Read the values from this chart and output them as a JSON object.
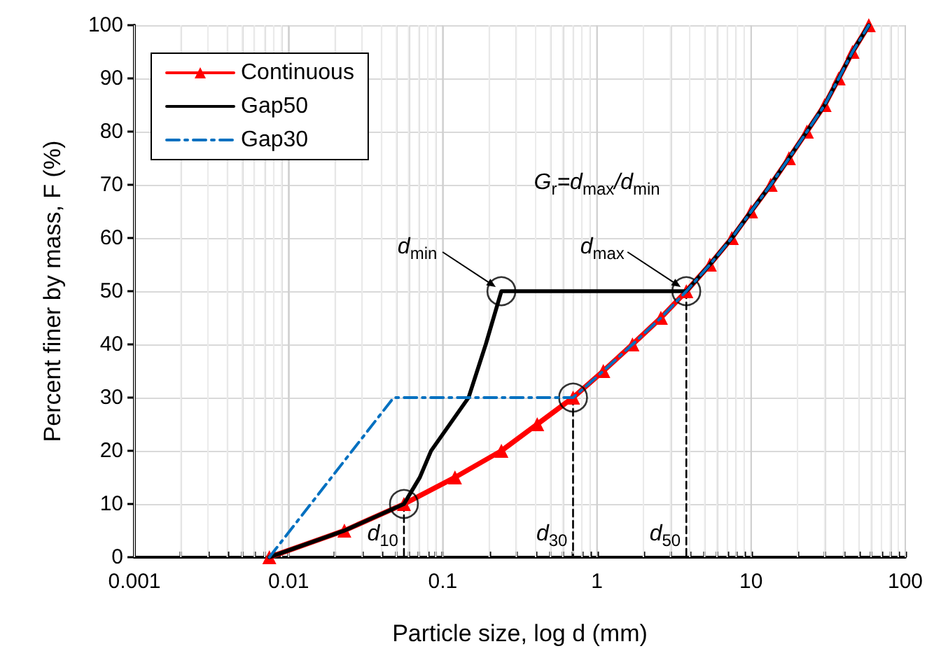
{
  "chart_data": {
    "type": "line",
    "xlabel": "Particle size, log d (mm)",
    "ylabel": "Percent finer by mass, F (%)",
    "log": "x",
    "xlim": [
      0.001,
      100
    ],
    "xticks": [
      0.001,
      {
        "value": 0.002,
        "label": null
      },
      {
        "value": 0.003,
        "label": null
      },
      {
        "value": 0.004,
        "label": null
      },
      {
        "value": 0.005,
        "label": null
      },
      {
        "value": 0.006,
        "label": null
      },
      {
        "value": 0.007,
        "label": null
      },
      {
        "value": 0.008,
        "label": null
      },
      {
        "value": 0.009,
        "label": null
      },
      0.01,
      {
        "value": 0.02,
        "label": null
      },
      {
        "value": 0.03,
        "label": null
      },
      {
        "value": 0.04,
        "label": null
      },
      {
        "value": 0.05,
        "label": null
      },
      {
        "value": 0.06,
        "label": null
      },
      {
        "value": 0.07,
        "label": null
      },
      {
        "value": 0.08,
        "label": null
      },
      {
        "value": 0.09,
        "label": null
      },
      0.1,
      {
        "value": 0.2,
        "label": null
      },
      {
        "value": 0.3,
        "label": null
      },
      {
        "value": 0.4,
        "label": null
      },
      {
        "value": 0.5,
        "label": null
      },
      {
        "value": 0.6,
        "label": null
      },
      {
        "value": 0.7,
        "label": null
      },
      {
        "value": 0.8,
        "label": null
      },
      {
        "value": 0.9,
        "label": null
      },
      1,
      {
        "value": 2,
        "label": null
      },
      {
        "value": 3,
        "label": null
      },
      {
        "value": 4,
        "label": null
      },
      {
        "value": 5,
        "label": null
      },
      {
        "value": 6,
        "label": null
      },
      {
        "value": 7,
        "label": null
      },
      {
        "value": 8,
        "label": null
      },
      {
        "value": 9,
        "label": null
      },
      10,
      {
        "value": 20,
        "label": null
      },
      {
        "value": 30,
        "label": null
      },
      {
        "value": 40,
        "label": null
      },
      {
        "value": 50,
        "label": null
      },
      {
        "value": 60,
        "label": null
      },
      {
        "value": 70,
        "label": null
      },
      {
        "value": 80,
        "label": null
      },
      {
        "value": 90,
        "label": null
      },
      100
    ],
    "ylim": [
      0,
      100
    ],
    "yticks": [
      0,
      10,
      20,
      30,
      40,
      50,
      60,
      70,
      80,
      90,
      100
    ],
    "grid": true,
    "legend": "top left",
    "series": [
      {
        "name": "Continuous",
        "color": "#ff0000",
        "marker": "triangle",
        "line_style": "solid",
        "x": [
          0.0075,
          0.023,
          0.056,
          0.12,
          0.24,
          0.41,
          0.7,
          1.1,
          1.7,
          2.6,
          3.8,
          5.4,
          7.5,
          10,
          13.4,
          17.6,
          23,
          30,
          37,
          45.5,
          58
        ],
        "values": [
          0,
          5,
          10,
          15,
          20,
          25,
          30,
          35,
          40,
          45,
          50,
          55,
          60,
          65,
          70,
          75,
          80,
          85,
          90,
          95,
          100
        ]
      },
      {
        "name": "Gap50",
        "color": "#000000",
        "marker": "none",
        "line_style": "solid",
        "x": [
          0.0075,
          0.023,
          0.056,
          0.071,
          0.084,
          0.147,
          0.19,
          0.24,
          3.8,
          5.4,
          7.5,
          10,
          13.4,
          17.6,
          23,
          30,
          37,
          45.5,
          58
        ],
        "values": [
          0,
          5,
          10,
          15,
          20,
          30,
          40,
          50,
          50,
          55,
          60,
          65,
          70,
          75,
          80,
          85,
          90,
          95,
          100
        ]
      },
      {
        "name": "Gap30",
        "color": "#0070c0",
        "marker": "none",
        "line_style": "dashed",
        "x": [
          0.0075,
          0.048,
          0.7,
          1.1,
          1.7,
          2.6,
          3.8,
          5.4,
          7.5,
          10,
          13.4,
          17.6,
          23,
          30,
          37,
          45.5,
          58
        ],
        "values": [
          0,
          30,
          30,
          35,
          40,
          45,
          50,
          55,
          60,
          65,
          70,
          75,
          80,
          85,
          90,
          95,
          100
        ]
      },
      {
        "type": "line",
        "color": "#000000",
        "marker": "none",
        "line_style": "dashed",
        "x": [
          0.056,
          0.056
        ],
        "values": [
          10,
          0
        ]
      },
      {
        "type": "line",
        "color": "#000000",
        "marker": "none",
        "line_style": "dashed",
        "x": [
          0.7,
          0.7
        ],
        "values": [
          30,
          0
        ]
      },
      {
        "type": "line",
        "color": "#000000",
        "marker": "none",
        "line_style": "dashed",
        "x": [
          3.8,
          3.8
        ],
        "values": [
          50,
          0
        ]
      },
      {
        "type": "scatter",
        "color": "#000000",
        "marker": "circle",
        "x": [
          0.056,
          0.7,
          0.24,
          3.8
        ],
        "values": [
          10,
          30,
          50,
          50
        ]
      }
    ],
    "annotations": [
      "G$_{r}$=d$_{max}$/d$_{min}$",
      {
        "text": "d$_{10}$",
        "x": 0.056,
        "y": 0
      },
      {
        "text": "d$_{30}$",
        "x": 0.7,
        "y": 0
      },
      {
        "text": "d$_{50}$",
        "x": 3.8,
        "y": 0
      },
      {
        "text": "d$_{min}$",
        "x": 0.24,
        "y": 50
      },
      {
        "text": "d$_{max}$",
        "x": 3.8,
        "y": 50
      }
    ]
  }
}
